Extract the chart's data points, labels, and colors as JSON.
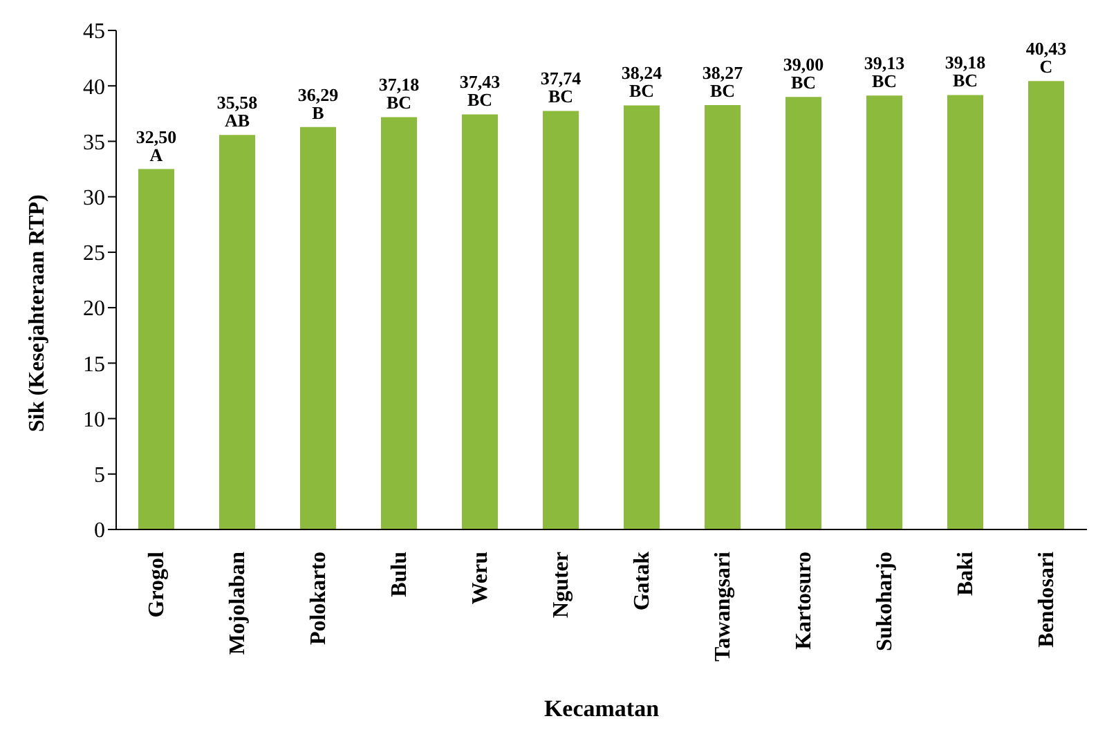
{
  "chart_data": {
    "type": "bar",
    "xlabel": "Kecamatan",
    "ylabel": "Sik (Kesejahteraan RTP)",
    "categories": [
      "Grogol",
      "Mojolaban",
      "Polokarto",
      "Bulu",
      "Weru",
      "Nguter",
      "Gatak",
      "Tawangsari",
      "Kartosuro",
      "Sukoharjo",
      "Baki",
      "Bendosari"
    ],
    "values": [
      32.5,
      35.58,
      36.29,
      37.18,
      37.43,
      37.74,
      38.24,
      38.27,
      39.0,
      39.13,
      39.18,
      40.43
    ],
    "value_labels": [
      "32,50 A",
      "35,58 AB",
      "36,29 B",
      "37,18 BC",
      "37,43 BC",
      "37,74 BC",
      "38,24 BC",
      "38,27 BC",
      "39,00 BC",
      "39,13 BC",
      "39,18 BC",
      "40,43 C"
    ],
    "color": "#8cba3c",
    "ylim": [
      0,
      45
    ],
    "yticks": [
      0,
      5,
      10,
      15,
      20,
      25,
      30,
      35,
      40,
      45
    ],
    "grid": false,
    "legend": false
  }
}
